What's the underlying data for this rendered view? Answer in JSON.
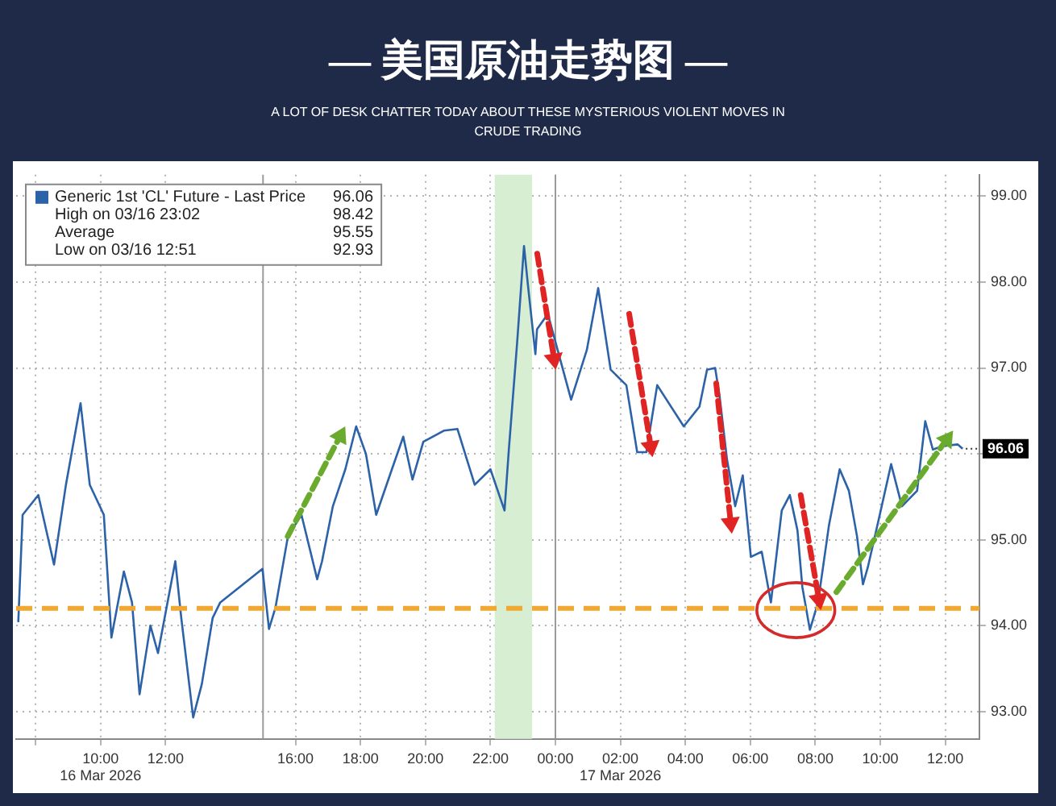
{
  "chart_data": {
    "type": "line",
    "title": "— 美国原油走势图 —",
    "subtitle": "A LOT OF DESK CHATTER TODAY ABOUT THESE MYSTERIOUS VIOLENT MOVES IN CRUDE TRADING",
    "series": [
      {
        "name": "Generic 1st 'CL' Future - Last Price",
        "color": "#2b62a8",
        "x": [
          "2026-03-16T07:28",
          "2026-03-16T07:36",
          "2026-03-16T08:05",
          "2026-03-16T08:34",
          "2026-03-16T08:56",
          "2026-03-16T09:23",
          "2026-03-16T09:40",
          "2026-03-16T10:06",
          "2026-03-16T10:20",
          "2026-03-16T10:43",
          "2026-03-16T10:58",
          "2026-03-16T11:12",
          "2026-03-16T11:32",
          "2026-03-16T11:46",
          "2026-03-16T12:18",
          "2026-03-16T12:29",
          "2026-03-16T12:51",
          "2026-03-16T13:07",
          "2026-03-16T13:27",
          "2026-03-16T13:41",
          "2026-03-16T14:59",
          "2026-03-16T15:11",
          "2026-03-16T15:23",
          "2026-03-16T15:46",
          "2026-03-16T16:11",
          "2026-03-16T16:40",
          "2026-03-16T16:49",
          "2026-03-16T17:09",
          "2026-03-16T17:32",
          "2026-03-16T17:52",
          "2026-03-16T18:10",
          "2026-03-16T18:29",
          "2026-03-16T18:58",
          "2026-03-16T19:19",
          "2026-03-16T19:36",
          "2026-03-16T19:56",
          "2026-03-16T20:34",
          "2026-03-16T20:59",
          "2026-03-16T21:31",
          "2026-03-16T22:00",
          "2026-03-16T22:26",
          "2026-03-16T22:34",
          "2026-03-16T22:49",
          "2026-03-16T23:02",
          "2026-03-16T23:09",
          "2026-03-16T23:23",
          "2026-03-16T23:26",
          "2026-03-16T23:46",
          "2026-03-17T00:29",
          "2026-03-17T00:58",
          "2026-03-17T01:19",
          "2026-03-17T01:42",
          "2026-03-17T02:11",
          "2026-03-17T02:31",
          "2026-03-17T02:48",
          "2026-03-17T03:08",
          "2026-03-17T03:57",
          "2026-03-17T04:26",
          "2026-03-17T04:40",
          "2026-03-17T04:55",
          "2026-03-17T05:03",
          "2026-03-17T05:17",
          "2026-03-17T05:32",
          "2026-03-17T05:46",
          "2026-03-17T06:01",
          "2026-03-17T06:21",
          "2026-03-17T06:38",
          "2026-03-17T06:58",
          "2026-03-17T07:13",
          "2026-03-17T07:27",
          "2026-03-17T07:36",
          "2026-03-17T07:50",
          "2026-03-17T08:05",
          "2026-03-17T08:25",
          "2026-03-17T08:45",
          "2026-03-17T09:02",
          "2026-03-17T09:17",
          "2026-03-17T09:28",
          "2026-03-17T09:37",
          "2026-03-17T09:59",
          "2026-03-17T10:20",
          "2026-03-17T10:40",
          "2026-03-17T11:08",
          "2026-03-17T11:23",
          "2026-03-17T11:37",
          "2026-03-17T11:55",
          "2026-03-17T12:23",
          "2026-03-17T12:32"
        ],
        "values": [
          94.04,
          95.29,
          95.52,
          94.71,
          95.64,
          96.59,
          95.64,
          95.29,
          93.86,
          94.63,
          94.27,
          93.2,
          94.0,
          93.68,
          94.75,
          94.09,
          92.93,
          93.32,
          94.09,
          94.27,
          94.66,
          93.96,
          94.21,
          95.04,
          95.29,
          94.54,
          94.75,
          95.39,
          95.82,
          96.32,
          96.0,
          95.29,
          95.82,
          96.2,
          95.7,
          96.14,
          96.27,
          96.29,
          95.64,
          95.82,
          95.34,
          96.05,
          97.27,
          98.42,
          97.98,
          97.16,
          97.45,
          97.63,
          96.63,
          97.21,
          97.93,
          96.98,
          96.8,
          96.02,
          96.02,
          96.8,
          96.32,
          96.55,
          96.98,
          97.0,
          96.68,
          95.93,
          95.39,
          95.75,
          94.8,
          94.86,
          94.27,
          95.34,
          95.52,
          95.11,
          94.45,
          93.95,
          94.27,
          95.16,
          95.82,
          95.57,
          95.04,
          94.48,
          94.68,
          95.29,
          95.88,
          95.39,
          95.57,
          96.38,
          96.05,
          96.09,
          96.11,
          96.06
        ]
      }
    ],
    "xlim": [
      "2026-03-16T07:24",
      "2026-03-17T13:03"
    ],
    "xticks": [
      {
        "value": "2026-03-16T08:00",
        "label": null
      },
      {
        "value": "2026-03-16T10:00",
        "label": "10:00\n16 Mar 2026"
      },
      {
        "value": "2026-03-16T12:00",
        "label": "12:00"
      },
      {
        "value": "2026-03-16T16:00",
        "label": "16:00"
      },
      {
        "value": "2026-03-16T18:00",
        "label": "18:00"
      },
      {
        "value": "2026-03-16T20:00",
        "label": "20:00"
      },
      {
        "value": "2026-03-16T22:00",
        "label": "22:00"
      },
      {
        "value": "2026-03-17T00:00",
        "label": "00:00"
      },
      {
        "value": "2026-03-17T02:00",
        "label": "02:00\n17 Mar 2026"
      },
      {
        "value": "2026-03-17T04:00",
        "label": "04:00"
      },
      {
        "value": "2026-03-17T06:00",
        "label": "06:00"
      },
      {
        "value": "2026-03-17T08:00",
        "label": "08:00"
      },
      {
        "value": "2026-03-17T10:00",
        "label": "10:00"
      },
      {
        "value": "2026-03-17T12:00",
        "label": "12:00"
      }
    ],
    "ylim": [
      92.68,
      99.25
    ],
    "yticks": [
      {
        "value": 93,
        "label": "93.00"
      },
      {
        "value": 94,
        "label": "94.00"
      },
      {
        "value": 95,
        "label": "95.00"
      },
      {
        "value": 96,
        "label": null
      },
      {
        "value": 97,
        "label": "97.00"
      },
      {
        "value": 98,
        "label": "98.00"
      },
      {
        "value": 99,
        "label": "99.00"
      }
    ],
    "grid": true,
    "legend": "top left",
    "marker": "none",
    "ref_lines": [
      {
        "axis": "x",
        "value": "2026-03-16T15:00",
        "color": "#9a9a9a",
        "line_style": "solid"
      },
      {
        "axis": "x",
        "value": "2026-03-17T00:00",
        "color": "#9a9a9a",
        "line_style": "solid"
      },
      {
        "axis": "y",
        "value": 94.2,
        "color": "#f0a830",
        "line_style": "dashed"
      }
    ],
    "bands": [
      {
        "axis": "x",
        "from": "2026-03-16T22:08",
        "to": "2026-03-16T23:17",
        "color": "#d8eed2"
      }
    ],
    "annotations": [
      "96.06",
      "High on 03/16 23:02",
      "98.42",
      "Average",
      "95.55",
      "Low on 03/16 12:51",
      "92.93",
      {
        "text": "96.06",
        "x": "2026-03-17T12:32",
        "y": 96.06
      }
    ]
  }
}
